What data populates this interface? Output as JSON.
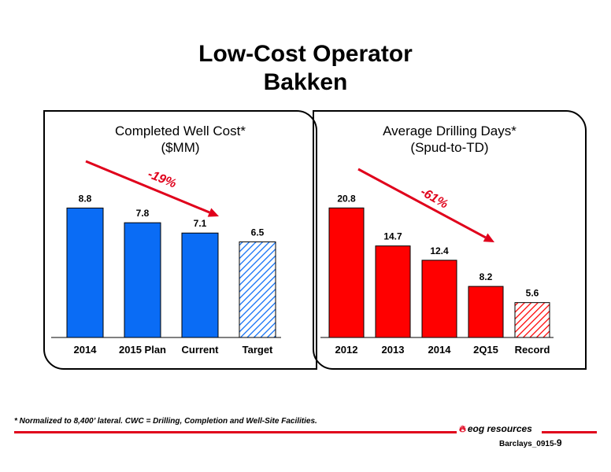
{
  "page": {
    "title_line1": "Low-Cost Operator",
    "title_line2": "Bakken",
    "footnote": "* Normalized to 8,400’ lateral. CWC = Drilling, Completion and Well-Site Facilities.",
    "logo_text": "eog resources",
    "page_id": "Barclays_0915-",
    "page_number": "9"
  },
  "colors": {
    "blue": "#0a6cf5",
    "red": "#ff0000",
    "accent_red": "#e0001b"
  },
  "chart_data": [
    {
      "type": "bar",
      "title": "Completed Well Cost*",
      "subtitle": "($MM)",
      "categories": [
        "2014",
        "2015 Plan",
        "Current",
        "Target"
      ],
      "values": [
        8.8,
        7.8,
        7.1,
        6.5
      ],
      "labels": [
        "8.8",
        "7.8",
        "7.1",
        "6.5"
      ],
      "hatched": [
        false,
        false,
        false,
        true
      ],
      "color": "#0a6cf5",
      "annotation": "-19%",
      "ylim": [
        0,
        10
      ]
    },
    {
      "type": "bar",
      "title": "Average Drilling Days*",
      "subtitle": "(Spud-to-TD)",
      "categories": [
        "2012",
        "2013",
        "2014",
        "2Q15",
        "Record"
      ],
      "values": [
        20.8,
        14.7,
        12.4,
        8.2,
        5.6
      ],
      "labels": [
        "20.8",
        "14.7",
        "12.4",
        "8.2",
        "5.6"
      ],
      "hatched": [
        false,
        false,
        false,
        false,
        true
      ],
      "color": "#ff0000",
      "annotation": "-61%",
      "ylim": [
        0,
        24
      ]
    }
  ]
}
